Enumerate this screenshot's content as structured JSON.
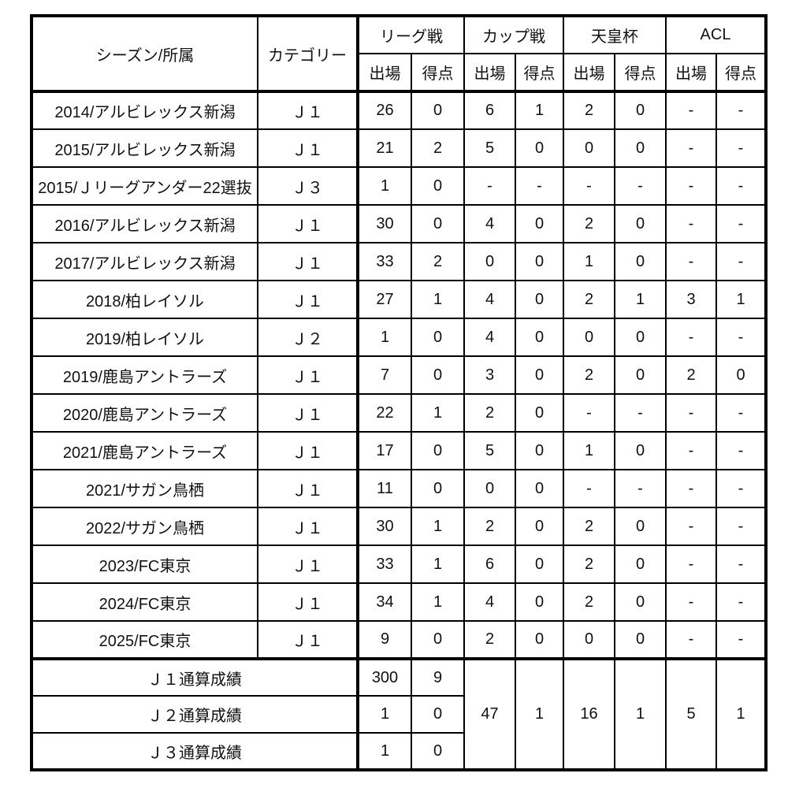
{
  "table": {
    "header": {
      "season_club": "シーズン/所属",
      "category": "カテゴリー",
      "groups": [
        {
          "label": "リーグ戦"
        },
        {
          "label": "カップ戦"
        },
        {
          "label": "天皇杯"
        },
        {
          "label": "ACL"
        }
      ],
      "sub_appearances": "出場",
      "sub_goals": "得点"
    },
    "rows": [
      {
        "season": "2014/アルビレックス新潟",
        "category": "Ｊ１",
        "stats": [
          "26",
          "0",
          "6",
          "1",
          "2",
          "0",
          "-",
          "-"
        ]
      },
      {
        "season": "2015/アルビレックス新潟",
        "category": "Ｊ１",
        "stats": [
          "21",
          "2",
          "5",
          "0",
          "0",
          "0",
          "-",
          "-"
        ]
      },
      {
        "season": "2015/Ｊリーグアンダー22選抜",
        "category": "Ｊ３",
        "stats": [
          "1",
          "0",
          "-",
          "-",
          "-",
          "-",
          "-",
          "-"
        ]
      },
      {
        "season": "2016/アルビレックス新潟",
        "category": "Ｊ１",
        "stats": [
          "30",
          "0",
          "4",
          "0",
          "2",
          "0",
          "-",
          "-"
        ]
      },
      {
        "season": "2017/アルビレックス新潟",
        "category": "Ｊ１",
        "stats": [
          "33",
          "2",
          "0",
          "0",
          "1",
          "0",
          "-",
          "-"
        ]
      },
      {
        "season": "2018/柏レイソル",
        "category": "Ｊ１",
        "stats": [
          "27",
          "1",
          "4",
          "0",
          "2",
          "1",
          "3",
          "1"
        ]
      },
      {
        "season": "2019/柏レイソル",
        "category": "Ｊ２",
        "stats": [
          "1",
          "0",
          "4",
          "0",
          "0",
          "0",
          "-",
          "-"
        ]
      },
      {
        "season": "2019/鹿島アントラーズ",
        "category": "Ｊ１",
        "stats": [
          "7",
          "0",
          "3",
          "0",
          "2",
          "0",
          "2",
          "0"
        ]
      },
      {
        "season": "2020/鹿島アントラーズ",
        "category": "Ｊ１",
        "stats": [
          "22",
          "1",
          "2",
          "0",
          "-",
          "-",
          "-",
          "-"
        ]
      },
      {
        "season": "2021/鹿島アントラーズ",
        "category": "Ｊ１",
        "stats": [
          "17",
          "0",
          "5",
          "0",
          "1",
          "0",
          "-",
          "-"
        ]
      },
      {
        "season": "2021/サガン鳥栖",
        "category": "Ｊ１",
        "stats": [
          "11",
          "0",
          "0",
          "0",
          "-",
          "-",
          "-",
          "-"
        ]
      },
      {
        "season": "2022/サガン鳥栖",
        "category": "Ｊ１",
        "stats": [
          "30",
          "1",
          "2",
          "0",
          "2",
          "0",
          "-",
          "-"
        ]
      },
      {
        "season": "2023/FC東京",
        "category": "Ｊ１",
        "stats": [
          "33",
          "1",
          "6",
          "0",
          "2",
          "0",
          "-",
          "-"
        ]
      },
      {
        "season": "2024/FC東京",
        "category": "Ｊ１",
        "stats": [
          "34",
          "1",
          "4",
          "0",
          "2",
          "0",
          "-",
          "-"
        ]
      },
      {
        "season": "2025/FC東京",
        "category": "Ｊ１",
        "stats": [
          "9",
          "0",
          "2",
          "0",
          "0",
          "0",
          "-",
          "-"
        ]
      }
    ],
    "totals": [
      {
        "label": "Ｊ１通算成績",
        "league": [
          "300",
          "9"
        ]
      },
      {
        "label": "Ｊ２通算成績",
        "league": [
          "1",
          "0"
        ]
      },
      {
        "label": "Ｊ３通算成績",
        "league": [
          "1",
          "0"
        ]
      }
    ],
    "totals_merged": [
      "47",
      "1",
      "16",
      "1",
      "5",
      "1"
    ]
  }
}
